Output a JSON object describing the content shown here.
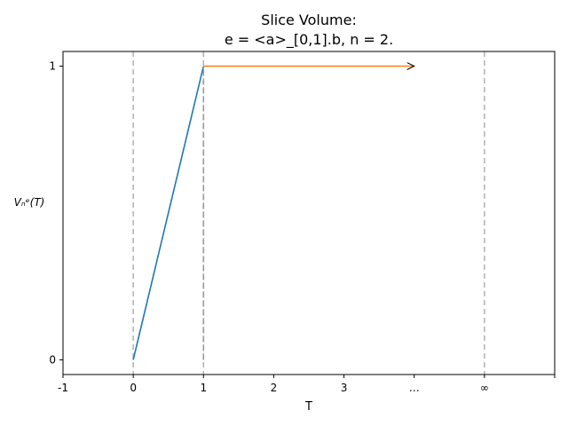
{
  "chart_data": {
    "type": "line",
    "title": "Slice Volume:",
    "subtitle": "e = <a>_[0,1].b, n = 2.",
    "xlabel": "T",
    "ylabel": "Vₙᵉ(T)",
    "xlim": [
      -1,
      6
    ],
    "ylim": [
      -0.05,
      1.05
    ],
    "x_ticks": [
      {
        "value": -1,
        "label": "-1"
      },
      {
        "value": 0,
        "label": "0"
      },
      {
        "value": 1,
        "label": "1"
      },
      {
        "value": 2,
        "label": "2"
      },
      {
        "value": 3,
        "label": "3"
      },
      {
        "value": 4,
        "label": "…"
      },
      {
        "value": 5,
        "label": "∞"
      },
      {
        "value": 6,
        "label": ""
      }
    ],
    "y_ticks": [
      {
        "value": 0,
        "label": "0"
      },
      {
        "value": 1,
        "label": "1"
      }
    ],
    "vlines": [
      0,
      1,
      5
    ],
    "series": [
      {
        "color": "#1f77b4",
        "x": [
          0,
          1
        ],
        "y": [
          0,
          1
        ]
      },
      {
        "color": "#ff7f0e",
        "x": [
          1,
          4
        ],
        "y": [
          1,
          1
        ],
        "arrow": true
      }
    ],
    "extra_segments": [
      {
        "color": "#999999",
        "x": [
          1,
          1
        ],
        "y": [
          0,
          1
        ],
        "dashed": true
      }
    ],
    "grid": false,
    "legend": false
  }
}
